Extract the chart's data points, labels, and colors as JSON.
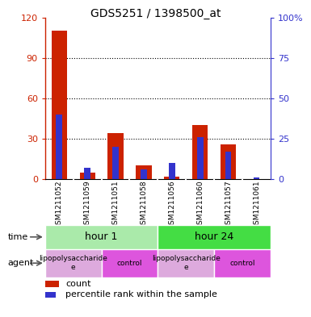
{
  "title": "GDS5251 / 1398500_at",
  "samples": [
    "GSM1211052",
    "GSM1211059",
    "GSM1211051",
    "GSM1211058",
    "GSM1211056",
    "GSM1211060",
    "GSM1211057",
    "GSM1211061"
  ],
  "red_values": [
    110,
    5,
    34,
    10,
    2,
    40,
    26,
    0
  ],
  "blue_values": [
    40,
    7,
    20,
    6,
    10,
    26,
    17,
    1
  ],
  "ylim_left": [
    0,
    120
  ],
  "ylim_right": [
    0,
    100
  ],
  "yticks_left": [
    0,
    30,
    60,
    90,
    120
  ],
  "yticks_right": [
    0,
    25,
    50,
    75,
    100
  ],
  "ytick_labels_left": [
    "0",
    "30",
    "60",
    "90",
    "120"
  ],
  "ytick_labels_right": [
    "0",
    "25",
    "50",
    "75",
    "100%"
  ],
  "red_color": "#cc2200",
  "blue_color": "#3333cc",
  "bar_bg_color": "#cccccc",
  "plot_bg_color": "#ffffff",
  "time_groups": [
    {
      "label": "hour 1",
      "start": 0,
      "end": 4,
      "color": "#aaeaaa"
    },
    {
      "label": "hour 24",
      "start": 4,
      "end": 8,
      "color": "#44dd44"
    }
  ],
  "agent_groups": [
    {
      "label": "lipopolysaccharide\ne",
      "start": 0,
      "end": 2,
      "color": "#ddaadd"
    },
    {
      "label": "control",
      "start": 2,
      "end": 4,
      "color": "#dd55dd"
    },
    {
      "label": "lipopolysaccharide\ne",
      "start": 4,
      "end": 6,
      "color": "#ddaadd"
    },
    {
      "label": "control",
      "start": 6,
      "end": 8,
      "color": "#dd55dd"
    }
  ],
  "legend_count_label": "count",
  "legend_pct_label": "percentile rank within the sample",
  "time_label": "time",
  "agent_label": "agent",
  "fig_width": 3.85,
  "fig_height": 3.93,
  "dpi": 100
}
